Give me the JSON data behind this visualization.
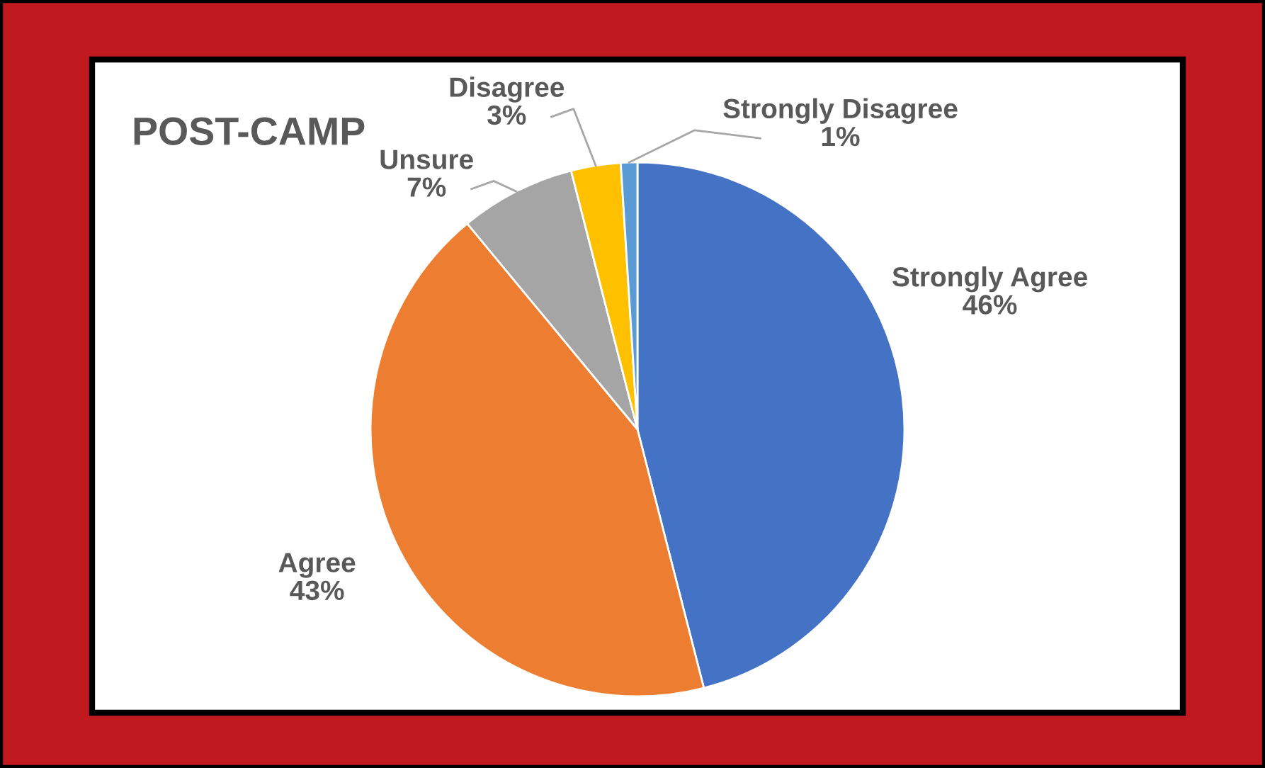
{
  "chart_data": {
    "type": "pie",
    "title": "POST-CAMP",
    "categories": [
      "Strongly Agree",
      "Agree",
      "Unsure",
      "Disagree",
      "Strongly Disagree"
    ],
    "values": [
      46,
      43,
      7,
      3,
      1
    ],
    "value_labels": [
      "46%",
      "43%",
      "7%",
      "3%",
      "1%"
    ],
    "colors": [
      "#4472c4",
      "#ed7d31",
      "#a5a5a5",
      "#ffc000",
      "#5b9bd5"
    ],
    "legend": false
  }
}
